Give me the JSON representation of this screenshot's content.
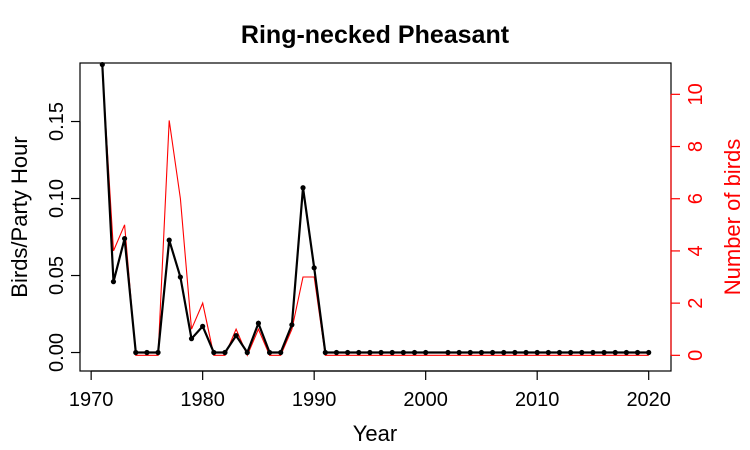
{
  "chart_data": {
    "type": "line",
    "title": "Ring-necked Pheasant",
    "xlabel": "Year",
    "ylabel_left": "Birds/Party Hour",
    "ylabel_right": "Number of birds",
    "xlim": [
      1969,
      2022
    ],
    "ylim_left": [
      -0.012,
      0.188
    ],
    "ylim_right": [
      -0.6,
      11.2
    ],
    "x_ticks": [
      1970,
      1980,
      1990,
      2000,
      2010,
      2020
    ],
    "y_ticks_left": [
      "0.00",
      "0.05",
      "0.10",
      "0.15"
    ],
    "y_ticks_right": [
      "0",
      "2",
      "4",
      "6",
      "8",
      "10"
    ],
    "grid": false,
    "colors": {
      "birds_per_party_hour": "#000000",
      "number_of_birds": "#ff0000"
    },
    "series": [
      {
        "axis": "left",
        "color": "#000000",
        "points": [
          [
            1971,
            0.187
          ],
          [
            1972,
            0.046
          ],
          [
            1973,
            0.074
          ],
          [
            1974,
            0
          ],
          [
            1975,
            0
          ],
          [
            1976,
            0
          ],
          [
            1977,
            0.073
          ],
          [
            1978,
            0.049
          ],
          [
            1979,
            0.009
          ],
          [
            1980,
            0.017
          ],
          [
            1981,
            0
          ],
          [
            1982,
            0
          ],
          [
            1983,
            0.011
          ],
          [
            1984,
            0
          ],
          [
            1985,
            0.019
          ],
          [
            1986,
            0
          ],
          [
            1987,
            0
          ],
          [
            1988,
            0.018
          ],
          [
            1989,
            0.107
          ],
          [
            1990,
            0.055
          ],
          [
            1991,
            0
          ],
          [
            1992,
            0
          ],
          [
            1993,
            0
          ],
          [
            1994,
            0
          ],
          [
            1995,
            0
          ],
          [
            1996,
            0
          ],
          [
            1997,
            0
          ],
          [
            1998,
            0
          ],
          [
            1999,
            0
          ],
          [
            2000,
            0
          ],
          [
            2002,
            0
          ],
          [
            2003,
            0
          ],
          [
            2004,
            0
          ],
          [
            2005,
            0
          ],
          [
            2006,
            0
          ],
          [
            2007,
            0
          ],
          [
            2008,
            0
          ],
          [
            2009,
            0
          ],
          [
            2010,
            0
          ],
          [
            2011,
            0
          ],
          [
            2012,
            0
          ],
          [
            2013,
            0
          ],
          [
            2014,
            0
          ],
          [
            2015,
            0
          ],
          [
            2016,
            0
          ],
          [
            2017,
            0
          ],
          [
            2018,
            0
          ],
          [
            2019,
            0
          ],
          [
            2020,
            0
          ]
        ]
      },
      {
        "axis": "right",
        "color": "#ff0000",
        "points": [
          [
            1971,
            11
          ],
          [
            1972,
            4
          ],
          [
            1973,
            5
          ],
          [
            1974,
            0
          ],
          [
            1975,
            0
          ],
          [
            1976,
            0
          ],
          [
            1977,
            9
          ],
          [
            1978,
            6
          ],
          [
            1979,
            1
          ],
          [
            1980,
            2
          ],
          [
            1981,
            0
          ],
          [
            1982,
            0
          ],
          [
            1983,
            1
          ],
          [
            1984,
            0
          ],
          [
            1985,
            1
          ],
          [
            1986,
            0
          ],
          [
            1987,
            0
          ],
          [
            1988,
            1
          ],
          [
            1989,
            3
          ],
          [
            1990,
            3
          ],
          [
            1991,
            0
          ],
          [
            1992,
            0
          ],
          [
            1993,
            0
          ],
          [
            1994,
            0
          ],
          [
            1995,
            0
          ],
          [
            1996,
            0
          ],
          [
            1997,
            0
          ],
          [
            1998,
            0
          ],
          [
            1999,
            0
          ],
          [
            2000,
            0
          ],
          [
            2002,
            0
          ],
          [
            2003,
            0
          ],
          [
            2004,
            0
          ],
          [
            2005,
            0
          ],
          [
            2006,
            0
          ],
          [
            2007,
            0
          ],
          [
            2008,
            0
          ],
          [
            2009,
            0
          ],
          [
            2010,
            0
          ],
          [
            2011,
            0
          ],
          [
            2012,
            0
          ],
          [
            2013,
            0
          ],
          [
            2014,
            0
          ],
          [
            2015,
            0
          ],
          [
            2016,
            0
          ],
          [
            2017,
            0
          ],
          [
            2018,
            0
          ],
          [
            2019,
            0
          ],
          [
            2020,
            0
          ]
        ]
      }
    ]
  }
}
